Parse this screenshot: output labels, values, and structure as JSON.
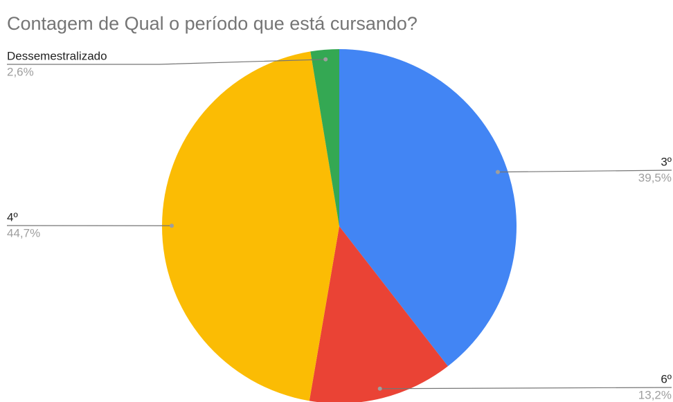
{
  "chart_data": {
    "type": "pie",
    "title": "Contagem de Qual o período que está cursando?",
    "categories": [
      "3º",
      "6º",
      "4º",
      "Dessemestralizado"
    ],
    "values": [
      39.5,
      13.2,
      44.7,
      2.6
    ],
    "value_labels": [
      "39,5%",
      "13,2%",
      "44,7%",
      "2,6%"
    ],
    "colors": [
      "#4285f4",
      "#ea4335",
      "#fbbc04",
      "#34a853"
    ]
  }
}
